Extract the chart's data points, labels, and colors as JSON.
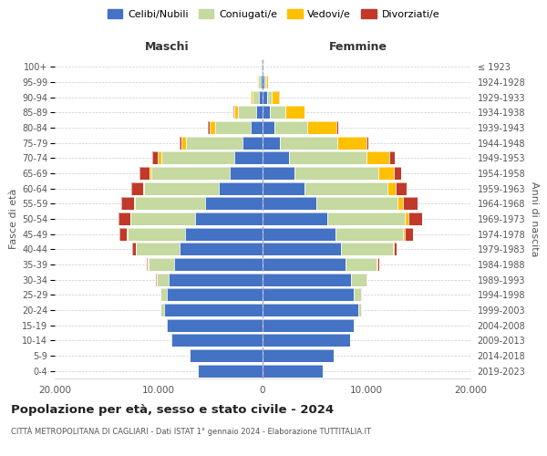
{
  "age_groups": [
    "0-4",
    "5-9",
    "10-14",
    "15-19",
    "20-24",
    "25-29",
    "30-34",
    "35-39",
    "40-44",
    "45-49",
    "50-54",
    "55-59",
    "60-64",
    "65-69",
    "70-74",
    "75-79",
    "80-84",
    "85-89",
    "90-94",
    "95-99",
    "100+"
  ],
  "birth_years": [
    "2019-2023",
    "2014-2018",
    "2009-2013",
    "2004-2008",
    "1999-2003",
    "1994-1998",
    "1989-1993",
    "1984-1988",
    "1979-1983",
    "1974-1978",
    "1969-1973",
    "1964-1968",
    "1959-1963",
    "1954-1958",
    "1949-1953",
    "1944-1948",
    "1939-1943",
    "1934-1938",
    "1929-1933",
    "1924-1928",
    "≤ 1923"
  ],
  "male_celibi": [
    6200,
    7000,
    8800,
    9200,
    9500,
    9200,
    9000,
    8500,
    8000,
    7500,
    6500,
    5500,
    4200,
    3200,
    2700,
    1900,
    1100,
    600,
    350,
    200,
    100
  ],
  "male_coniugati": [
    10,
    20,
    50,
    100,
    300,
    600,
    1200,
    2500,
    4200,
    5500,
    6200,
    6800,
    7200,
    7500,
    7000,
    5500,
    3500,
    1800,
    600,
    250,
    50
  ],
  "male_vedovi": [
    0,
    0,
    1,
    1,
    2,
    5,
    5,
    10,
    15,
    30,
    50,
    60,
    100,
    200,
    350,
    400,
    500,
    300,
    150,
    50,
    10
  ],
  "male_divorziati": [
    0,
    0,
    5,
    10,
    20,
    40,
    60,
    150,
    300,
    700,
    1100,
    1200,
    1100,
    900,
    600,
    200,
    150,
    80,
    40,
    20,
    5
  ],
  "female_celibi": [
    5800,
    6800,
    8400,
    8800,
    9200,
    8800,
    8500,
    8000,
    7500,
    7000,
    6200,
    5200,
    4000,
    3100,
    2500,
    1700,
    1100,
    700,
    400,
    200,
    100
  ],
  "female_coniugati": [
    10,
    20,
    50,
    100,
    300,
    700,
    1500,
    3000,
    5000,
    6500,
    7500,
    7800,
    8000,
    8000,
    7500,
    5500,
    3200,
    1500,
    500,
    150,
    30
  ],
  "female_vedovi": [
    0,
    0,
    1,
    2,
    5,
    10,
    20,
    50,
    100,
    200,
    350,
    500,
    800,
    1500,
    2200,
    2800,
    2800,
    1800,
    700,
    200,
    20
  ],
  "female_divorziati": [
    0,
    0,
    2,
    5,
    15,
    40,
    80,
    200,
    300,
    800,
    1300,
    1400,
    1100,
    700,
    500,
    200,
    150,
    60,
    30,
    10,
    2
  ],
  "colors": {
    "celibi": "#4472c4",
    "coniugati": "#c5d9a0",
    "vedovi": "#ffc000",
    "divorziati": "#c0392b"
  },
  "title": "Popolazione per età, sesso e stato civile - 2024",
  "subtitle": "CITTÀ METROPOLITANA DI CAGLIARI - Dati ISTAT 1° gennaio 2024 - Elaborazione TUTTITALIA.IT",
  "xlabel_left": "Maschi",
  "xlabel_right": "Femmine",
  "ylabel_left": "Fasce di età",
  "ylabel_right": "Anni di nascita",
  "xlim": 20000,
  "xtick_labels": [
    "20.000",
    "10.000",
    "0",
    "10.000",
    "20.000"
  ],
  "xtick_values": [
    -20000,
    -10000,
    0,
    10000,
    20000
  ],
  "background_color": "#ffffff",
  "grid_color": "#cccccc"
}
